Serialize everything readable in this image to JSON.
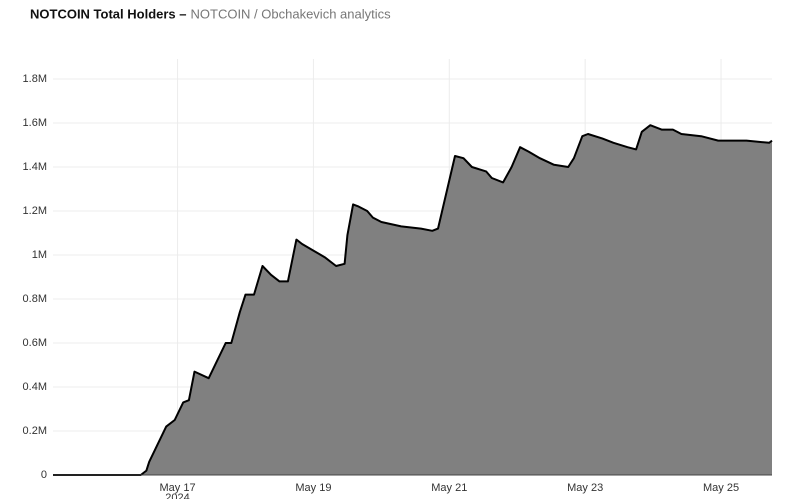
{
  "chart_data": {
    "type": "area",
    "title": "NOTCOIN Total Holders –",
    "subtitle": "NOTCOIN / Obchakevich analytics",
    "x": [
      "2024-05-15T04:00",
      "2024-05-16T00:00",
      "2024-05-16T11:00",
      "2024-05-16T13:00",
      "2024-05-16T14:00",
      "2024-05-16T17:00",
      "2024-05-16T20:00",
      "2024-05-16T23:00",
      "2024-05-17T02:00",
      "2024-05-17T04:00",
      "2024-05-17T06:00",
      "2024-05-17T11:00",
      "2024-05-17T14:00",
      "2024-05-17T17:00",
      "2024-05-17T19:00",
      "2024-05-17T22:00",
      "2024-05-18T00:00",
      "2024-05-18T03:00",
      "2024-05-18T06:00",
      "2024-05-18T09:00",
      "2024-05-18T12:00",
      "2024-05-18T15:00",
      "2024-05-18T18:00",
      "2024-05-18T20:00",
      "2024-05-19T00:00",
      "2024-05-19T04:00",
      "2024-05-19T08:00",
      "2024-05-19T11:00",
      "2024-05-19T12:00",
      "2024-05-19T14:00",
      "2024-05-19T16:00",
      "2024-05-19T19:00",
      "2024-05-19T21:00",
      "2024-05-20T00:00",
      "2024-05-20T07:00",
      "2024-05-20T14:00",
      "2024-05-20T18:00",
      "2024-05-20T20:00",
      "2024-05-21T02:00",
      "2024-05-21T05:00",
      "2024-05-21T08:00",
      "2024-05-21T13:00",
      "2024-05-21T15:00",
      "2024-05-21T19:00",
      "2024-05-21T22:00",
      "2024-05-22T01:00",
      "2024-05-22T04:00",
      "2024-05-22T08:00",
      "2024-05-22T13:00",
      "2024-05-22T18:00",
      "2024-05-22T20:00",
      "2024-05-22T23:00",
      "2024-05-23T01:00",
      "2024-05-23T06:00",
      "2024-05-23T10:00",
      "2024-05-23T15:00",
      "2024-05-23T18:00",
      "2024-05-23T20:00",
      "2024-05-23T23:00",
      "2024-05-24T03:00",
      "2024-05-24T07:00",
      "2024-05-24T10:00",
      "2024-05-24T17:00",
      "2024-05-24T23:00",
      "2024-05-25T09:00",
      "2024-05-25T17:00",
      "2024-05-25T18:00"
    ],
    "series": [
      {
        "color": "#808080",
        "values": [
          0,
          0,
          0,
          20000,
          60000,
          140000,
          220000,
          250000,
          330000,
          340000,
          470000,
          440000,
          520000,
          600000,
          600000,
          740000,
          820000,
          820000,
          950000,
          910000,
          880000,
          880000,
          1070000,
          1050000,
          1020000,
          990000,
          950000,
          960000,
          1090000,
          1230000,
          1220000,
          1200000,
          1170000,
          1150000,
          1130000,
          1120000,
          1110000,
          1120000,
          1450000,
          1440000,
          1400000,
          1380000,
          1350000,
          1330000,
          1400000,
          1490000,
          1470000,
          1440000,
          1410000,
          1400000,
          1440000,
          1540000,
          1550000,
          1530000,
          1510000,
          1490000,
          1480000,
          1560000,
          1590000,
          1570000,
          1570000,
          1550000,
          1540000,
          1520000,
          1520000,
          1510000,
          1520000
        ]
      }
    ],
    "xlim": [
      "2024-05-15T04:00",
      "2024-05-25T18:00"
    ],
    "xticks": [
      {
        "value": "2024-05-17T00:00",
        "label": "May 17"
      },
      {
        "value": "2024-05-19T00:00",
        "label": "May 19"
      },
      {
        "value": "2024-05-21T00:00",
        "label": "May 21"
      },
      {
        "value": "2024-05-23T00:00",
        "label": "May 23"
      },
      {
        "value": "2024-05-25T00:00",
        "label": "May 25"
      }
    ],
    "xtick_year": "2024",
    "ylim": [
      0,
      1800000
    ],
    "yticks": [
      0,
      {
        "value": 200000,
        "label": "0.2M"
      },
      {
        "value": 400000,
        "label": "0.4M"
      },
      {
        "value": 600000,
        "label": "0.6M"
      },
      {
        "value": 800000,
        "label": "0.8M"
      },
      {
        "value": 1000000,
        "label": "1M"
      },
      {
        "value": 1200000,
        "label": "1.2M"
      },
      {
        "value": 1400000,
        "label": "1.4M"
      },
      {
        "value": 1600000,
        "label": "1.6M"
      },
      {
        "value": 1800000,
        "label": "1.8M"
      }
    ],
    "grid": true,
    "line_color": "#000000"
  }
}
